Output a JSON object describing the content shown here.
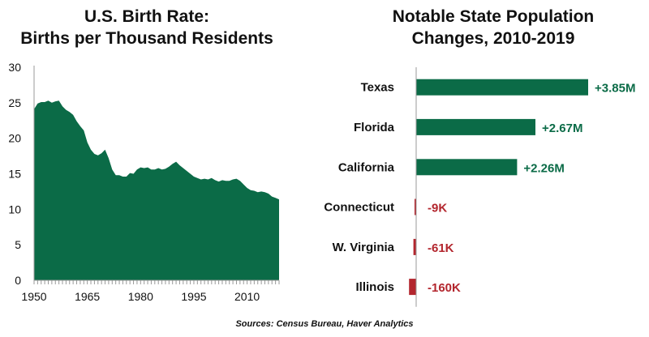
{
  "source_note": "Sources: Census Bureau, Haver Analytics",
  "colors": {
    "positive": "#0b6b47",
    "negative": "#b3262e",
    "text": "#111111",
    "axis": "#999999"
  },
  "chart_data": [
    {
      "type": "area",
      "title_lines": [
        "U.S. Birth Rate:",
        "Births per Thousand Residents"
      ],
      "xlabel": "",
      "ylabel": "",
      "xlim": [
        1950,
        2019
      ],
      "ylim": [
        0,
        30
      ],
      "xticks": [
        1950,
        1965,
        1980,
        1995,
        2010
      ],
      "yticks": [
        0,
        5,
        10,
        15,
        20,
        25,
        30
      ],
      "grid": false,
      "x": [
        1950,
        1951,
        1952,
        1953,
        1954,
        1955,
        1956,
        1957,
        1958,
        1959,
        1960,
        1961,
        1962,
        1963,
        1964,
        1965,
        1966,
        1967,
        1968,
        1969,
        1970,
        1971,
        1972,
        1973,
        1974,
        1975,
        1976,
        1977,
        1978,
        1979,
        1980,
        1981,
        1982,
        1983,
        1984,
        1985,
        1986,
        1987,
        1988,
        1989,
        1990,
        1991,
        1992,
        1993,
        1994,
        1995,
        1996,
        1997,
        1998,
        1999,
        2000,
        2001,
        2002,
        2003,
        2004,
        2005,
        2006,
        2007,
        2008,
        2009,
        2010,
        2011,
        2012,
        2013,
        2014,
        2015,
        2016,
        2017,
        2018,
        2019
      ],
      "y": [
        24.1,
        24.9,
        25.1,
        25.1,
        25.3,
        25.0,
        25.2,
        25.3,
        24.5,
        24.0,
        23.7,
        23.3,
        22.4,
        21.7,
        21.1,
        19.4,
        18.4,
        17.8,
        17.6,
        17.9,
        18.4,
        17.2,
        15.6,
        14.8,
        14.8,
        14.6,
        14.6,
        15.1,
        15.0,
        15.6,
        15.9,
        15.8,
        15.9,
        15.6,
        15.6,
        15.8,
        15.6,
        15.7,
        16.0,
        16.4,
        16.7,
        16.2,
        15.8,
        15.4,
        15.0,
        14.6,
        14.4,
        14.2,
        14.3,
        14.2,
        14.4,
        14.1,
        13.9,
        14.1,
        14.0,
        14.0,
        14.2,
        14.3,
        14.0,
        13.5,
        13.0,
        12.7,
        12.6,
        12.4,
        12.5,
        12.4,
        12.2,
        11.8,
        11.6,
        11.4
      ]
    },
    {
      "type": "bar",
      "orientation": "horizontal",
      "title_lines": [
        "Notable State Population",
        "Changes, 2010-2019"
      ],
      "categories": [
        "Texas",
        "Florida",
        "California",
        "Connecticut",
        "W. Virginia",
        "Illinois"
      ],
      "values": [
        3850000,
        2670000,
        2260000,
        -9000,
        -61000,
        -160000
      ],
      "data_labels": [
        "+3.85M",
        "+2.67M",
        "+2.26M",
        "-9K",
        "-61K",
        "-160K"
      ]
    }
  ]
}
